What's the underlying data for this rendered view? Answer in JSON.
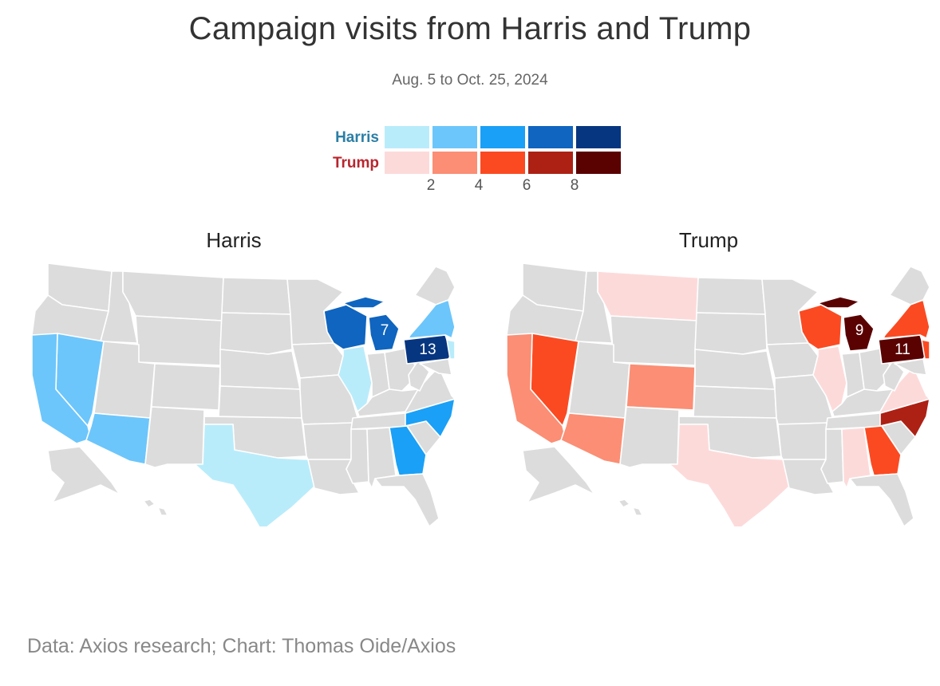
{
  "title": "Campaign visits from Harris and Trump",
  "subtitle": "Aug. 5 to Oct. 25, 2024",
  "source": "Data: Axios research; Chart: Thomas Oide/Axios",
  "legend": {
    "rows": [
      {
        "label": "Harris",
        "color": "#2b7ea6",
        "scale": [
          "#b9ecfb",
          "#6cc6fb",
          "#1aa0f6",
          "#0f65bf",
          "#073680"
        ]
      },
      {
        "label": "Trump",
        "color": "#b8262f",
        "scale": [
          "#fddada",
          "#fb8e74",
          "#fb4a22",
          "#ad2114",
          "#5a0202"
        ]
      }
    ],
    "ticks": [
      "2",
      "4",
      "6",
      "8"
    ]
  },
  "colors": {
    "no_visits": "#dcdcdc"
  },
  "maps": [
    {
      "title": "Harris",
      "states": [
        {
          "id": "CA",
          "level": 2
        },
        {
          "id": "NV",
          "level": 2
        },
        {
          "id": "AZ",
          "level": 2
        },
        {
          "id": "TX",
          "level": 1
        },
        {
          "id": "WI",
          "level": 4
        },
        {
          "id": "MI",
          "level": 4,
          "label": "7"
        },
        {
          "id": "IL",
          "level": 1
        },
        {
          "id": "PA",
          "level": 5,
          "label": "13"
        },
        {
          "id": "NY",
          "level": 2
        },
        {
          "id": "NJ",
          "level": 1
        },
        {
          "id": "NC",
          "level": 3
        },
        {
          "id": "GA",
          "level": 3
        }
      ]
    },
    {
      "title": "Trump",
      "states": [
        {
          "id": "CA",
          "level": 2
        },
        {
          "id": "NV",
          "level": 3
        },
        {
          "id": "AZ",
          "level": 2
        },
        {
          "id": "MT",
          "level": 1
        },
        {
          "id": "CO",
          "level": 2
        },
        {
          "id": "TX",
          "level": 1
        },
        {
          "id": "WI",
          "level": 3
        },
        {
          "id": "MI",
          "level": 5,
          "label": "9"
        },
        {
          "id": "IL",
          "level": 1
        },
        {
          "id": "PA",
          "level": 5,
          "label": "11"
        },
        {
          "id": "NY",
          "level": 3
        },
        {
          "id": "NJ",
          "level": 3
        },
        {
          "id": "VA",
          "level": 1
        },
        {
          "id": "NC",
          "level": 4
        },
        {
          "id": "GA",
          "level": 3
        },
        {
          "id": "AL",
          "level": 1
        }
      ]
    }
  ]
}
